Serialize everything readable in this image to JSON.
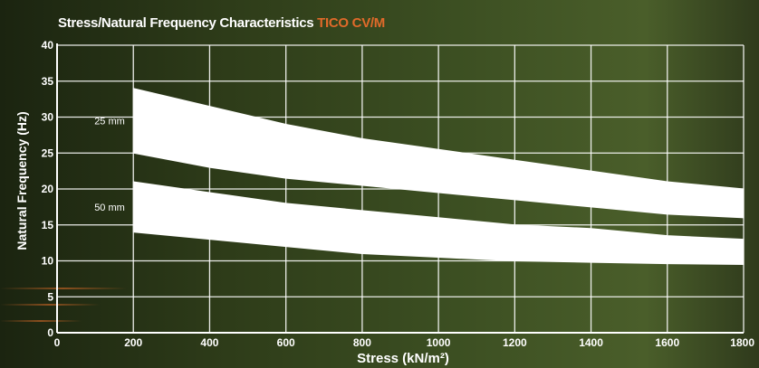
{
  "title": {
    "main": "Stress/Natural Frequency Characteristics",
    "accent": "TICO CV/M",
    "accent_color": "#e06a2a"
  },
  "chart_data": {
    "type": "area",
    "title": "Stress/Natural Frequency Characteristics TICO CV/M",
    "xlabel": "Stress (kN/m²)",
    "ylabel": "Natural Frequency (Hz)",
    "xlim": [
      0,
      1800
    ],
    "ylim": [
      0,
      40
    ],
    "xticks": [
      0,
      200,
      400,
      600,
      800,
      1000,
      1200,
      1400,
      1600,
      1800
    ],
    "yticks": [
      0,
      5,
      10,
      15,
      20,
      25,
      30,
      35,
      40
    ],
    "grid": true,
    "band_color": "#ffffff",
    "series": [
      {
        "name": "25 mm",
        "x": [
          200,
          400,
          600,
          800,
          1000,
          1200,
          1400,
          1600,
          1800
        ],
        "upper": [
          34,
          31.5,
          29,
          27,
          25.5,
          24,
          22.5,
          21,
          20
        ],
        "lower": [
          25,
          23,
          21.5,
          20.5,
          19.5,
          18.5,
          17.5,
          16.5,
          16
        ]
      },
      {
        "name": "50 mm",
        "x": [
          200,
          400,
          600,
          800,
          1000,
          1200,
          1400,
          1600,
          1800
        ],
        "upper": [
          21,
          19.5,
          18,
          17,
          16,
          15,
          14.5,
          13.5,
          13
        ],
        "lower": [
          14,
          13,
          12,
          11,
          10.5,
          10,
          9.8,
          9.6,
          9.5
        ]
      }
    ]
  }
}
